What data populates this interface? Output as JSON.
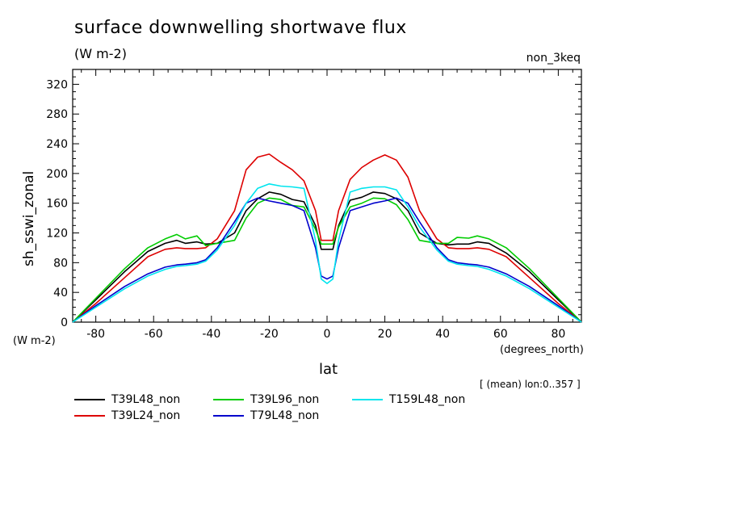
{
  "header": {
    "title": "surface downwelling shortwave flux",
    "units": "(W m-2)",
    "run": "non_3keq"
  },
  "footer": {
    "y_unit": "(W m-2)",
    "x_unit": "(degrees_north)",
    "note": "[ (mean) lon:0..357 ]"
  },
  "chart_data": {
    "type": "line",
    "title": "surface downwelling shortwave flux",
    "xlabel": "lat",
    "ylabel": "sh_sswi_zonal",
    "xlim": [
      -88,
      88
    ],
    "ylim": [
      0,
      340
    ],
    "xticks": [
      -80,
      -60,
      -40,
      -20,
      0,
      20,
      40,
      60,
      80
    ],
    "yticks": [
      0,
      40,
      80,
      120,
      160,
      200,
      240,
      280,
      320
    ],
    "grid": false,
    "legend": "bottom",
    "x": [
      -88,
      -80,
      -70,
      -62,
      -56,
      -52,
      -49,
      -45,
      -42,
      -38,
      -32,
      -28,
      -24,
      -20,
      -16,
      -12,
      -8,
      -4,
      -2,
      0,
      2,
      4,
      8,
      12,
      16,
      20,
      24,
      28,
      32,
      38,
      42,
      45,
      49,
      52,
      56,
      62,
      70,
      80,
      88
    ],
    "series": [
      {
        "name": "T39L48_non",
        "color": "#000000",
        "values": [
          0,
          30,
          68,
          95,
          106,
          110,
          106,
          108,
          105,
          106,
          120,
          150,
          166,
          175,
          172,
          165,
          162,
          130,
          98,
          98,
          98,
          130,
          164,
          168,
          175,
          173,
          166,
          150,
          120,
          106,
          104,
          105,
          105,
          108,
          106,
          93,
          68,
          30,
          0
        ]
      },
      {
        "name": "T39L24_non",
        "color": "#dd0000",
        "values": [
          0,
          25,
          60,
          88,
          98,
          100,
          99,
          99,
          100,
          112,
          150,
          205,
          222,
          226,
          215,
          205,
          190,
          150,
          110,
          110,
          110,
          150,
          192,
          208,
          218,
          225,
          218,
          195,
          150,
          112,
          100,
          99,
          99,
          100,
          98,
          88,
          60,
          25,
          0
        ]
      },
      {
        "name": "T39L96_non",
        "color": "#00cc00",
        "values": [
          0,
          32,
          72,
          100,
          112,
          118,
          112,
          116,
          103,
          106,
          110,
          140,
          160,
          167,
          165,
          157,
          155,
          125,
          105,
          105,
          105,
          128,
          155,
          160,
          167,
          166,
          158,
          138,
          110,
          106,
          106,
          114,
          113,
          116,
          112,
          100,
          72,
          32,
          0
        ]
      },
      {
        "name": "T79L48_non",
        "color": "#0000cc",
        "values": [
          0,
          22,
          48,
          65,
          74,
          77,
          78,
          80,
          84,
          100,
          135,
          160,
          167,
          163,
          160,
          157,
          150,
          100,
          62,
          58,
          62,
          100,
          150,
          155,
          160,
          163,
          167,
          160,
          135,
          100,
          84,
          80,
          78,
          77,
          74,
          65,
          48,
          22,
          0
        ]
      },
      {
        "name": "T159L48_non",
        "color": "#00e5ee",
        "values": [
          0,
          20,
          45,
          62,
          71,
          75,
          76,
          78,
          82,
          97,
          130,
          160,
          180,
          186,
          183,
          182,
          180,
          110,
          58,
          52,
          58,
          110,
          175,
          180,
          182,
          182,
          178,
          155,
          128,
          97,
          82,
          78,
          76,
          75,
          71,
          62,
          45,
          20,
          0
        ]
      }
    ]
  }
}
